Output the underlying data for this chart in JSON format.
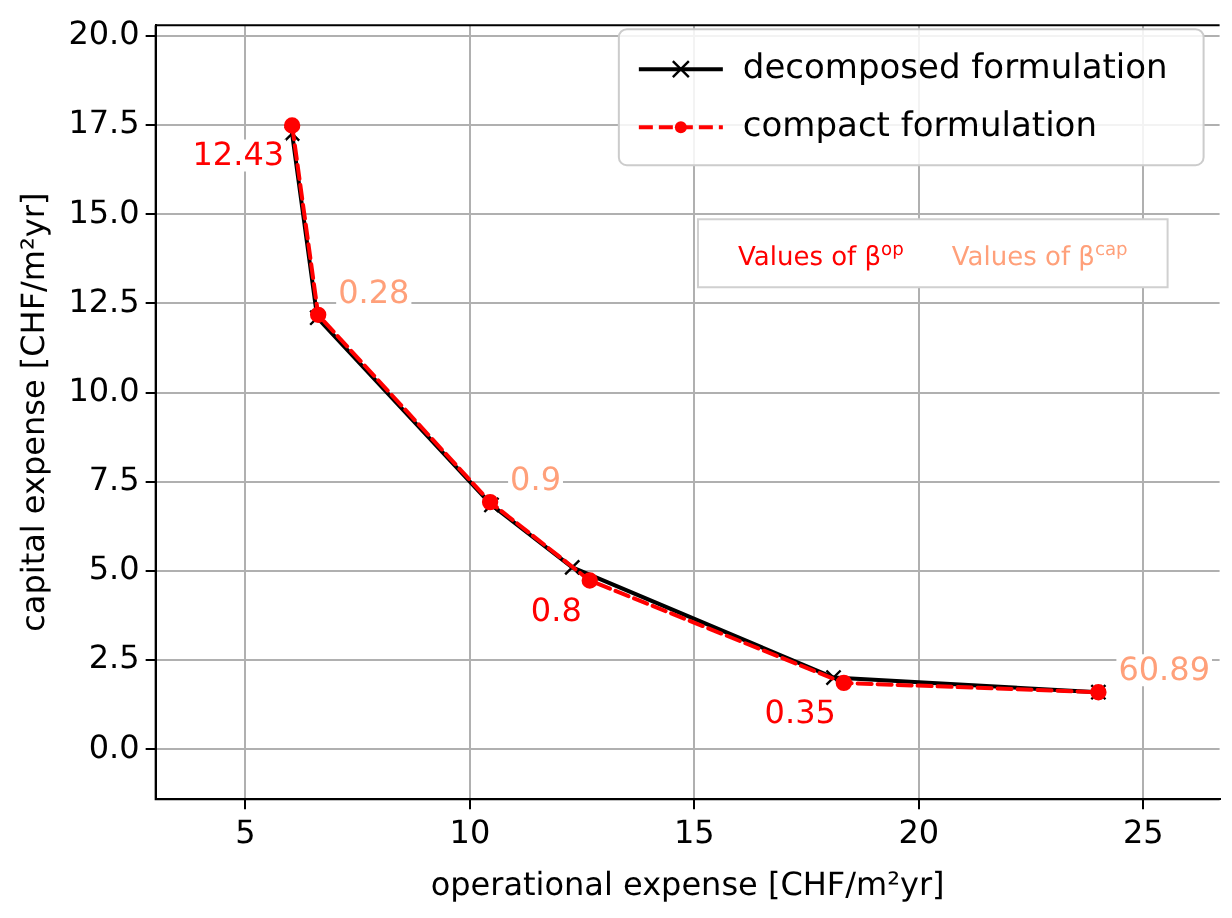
{
  "chart_data": {
    "type": "line",
    "xlabel": "operational expense [CHF/m²yr]",
    "ylabel": "capital expense [CHF/m²yr]",
    "xlim": [
      3.0,
      26.7
    ],
    "ylim": [
      -1.4,
      20.3
    ],
    "xticks": [
      5,
      10,
      15,
      20,
      25
    ],
    "yticks": [
      {
        "value": 0,
        "label": "0.0"
      },
      {
        "value": 2.5,
        "label": "2.5"
      },
      {
        "value": 5,
        "label": "5.0"
      },
      {
        "value": 7.5,
        "label": "7.5"
      },
      {
        "value": 10,
        "label": "10.0"
      },
      {
        "value": 12.5,
        "label": "12.5"
      },
      {
        "value": 15,
        "label": "15.0"
      },
      {
        "value": 17.5,
        "label": "17.5"
      },
      {
        "value": 20,
        "label": "20.0"
      }
    ],
    "grid": true,
    "legend": "top right",
    "series": [
      {
        "name": "decomposed formulation",
        "color": "#000000",
        "marker": "cross",
        "line_style": "solid",
        "x": [
          6.04,
          6.6,
          10.48,
          12.28,
          18.1,
          24.0
        ],
        "values": [
          17.26,
          12.1,
          6.85,
          5.1,
          2.01,
          1.6
        ]
      },
      {
        "name": "compact formulation",
        "color": "#ff0000",
        "marker": "circle",
        "line_style": "dashed",
        "x": [
          6.04,
          6.62,
          10.45,
          12.67,
          18.33,
          24.0
        ],
        "values": [
          17.49,
          12.18,
          6.93,
          4.73,
          1.86,
          1.6
        ]
      }
    ],
    "annotations": [
      "Values of β$^{op}$",
      {
        "text": "12.43",
        "x": 6.04,
        "y": 17.49
      },
      {
        "text": "0.8",
        "x": 12.67,
        "y": 4.73
      },
      {
        "text": "0.35",
        "x": 18.33,
        "y": 1.86
      },
      "Values of β$^{cap}$",
      {
        "text": "0.28",
        "x": 6.62,
        "y": 12.18
      },
      {
        "text": "0.9",
        "x": 10.45,
        "y": 6.93
      },
      {
        "text": "60.89",
        "x": 24.0,
        "y": 1.6
      }
    ]
  }
}
